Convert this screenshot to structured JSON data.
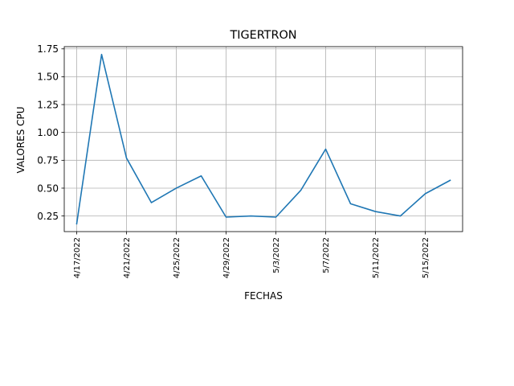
{
  "chart_data": {
    "type": "line",
    "title": "TIGERTRON",
    "xlabel": "FECHAS",
    "ylabel": "VALORES CPU",
    "x": [
      "4/17/2022",
      "4/19/2022",
      "4/21/2022",
      "4/23/2022",
      "4/25/2022",
      "4/27/2022",
      "4/29/2022",
      "5/1/2022",
      "5/3/2022",
      "5/5/2022",
      "5/7/2022",
      "5/9/2022",
      "5/11/2022",
      "5/13/2022",
      "5/15/2022",
      "5/17/2022"
    ],
    "series": [
      {
        "color": "#1f77b4",
        "values": [
          0.18,
          1.7,
          0.77,
          0.37,
          0.5,
          0.61,
          0.24,
          0.25,
          0.24,
          0.48,
          0.85,
          0.36,
          0.29,
          0.25,
          0.45,
          0.57
        ]
      }
    ],
    "xticks": [
      "4/17/2022",
      "4/21/2022",
      "4/25/2022",
      "4/29/2022",
      "5/3/2022",
      "5/7/2022",
      "5/11/2022",
      "5/15/2022"
    ],
    "yticks": [
      0.25,
      0.5,
      0.75,
      1.0,
      1.25,
      1.5,
      1.75
    ],
    "ytick_labels": [
      "0.25",
      "0.50",
      "0.75",
      "1.00",
      "1.25",
      "1.50",
      "1.75"
    ],
    "xlim": [
      "4/16/2022",
      "5/18/2022"
    ],
    "ylim": [
      0.11,
      1.77
    ],
    "grid": true
  }
}
